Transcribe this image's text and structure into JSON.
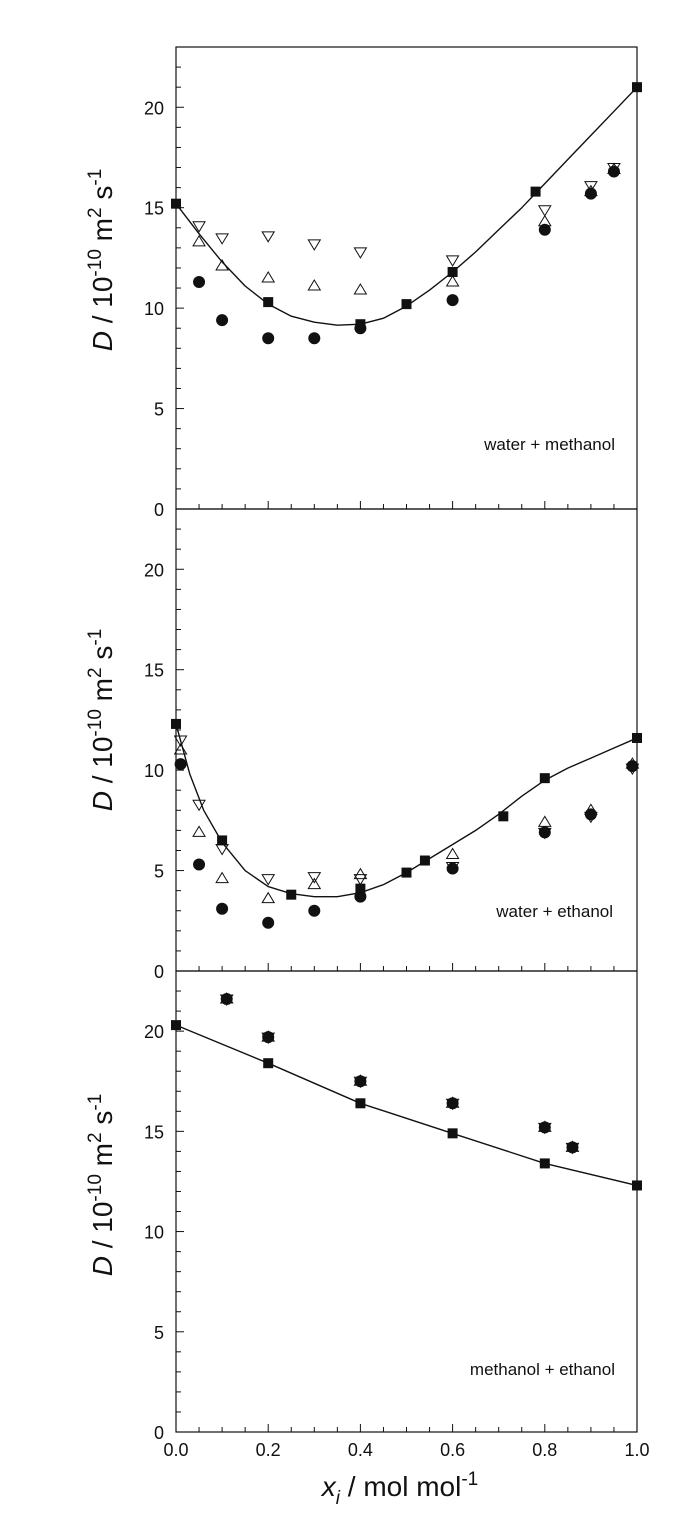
{
  "chart_data": [
    {
      "type": "scatter",
      "panel": "top",
      "annotation": "water + methanol",
      "ylabel_italic": "D",
      "ylabel_rest": " / 10",
      "ylabel_exp": "-10",
      "ylabel_unit": " m",
      "ylabel_unit_exp": "2",
      "ylabel_s": " s",
      "ylabel_s_exp": "-1",
      "xlim": [
        0,
        1
      ],
      "ylim": [
        0,
        23
      ],
      "yticks": [
        0,
        5,
        10,
        15,
        20
      ],
      "yticklabels": [
        "0",
        "5",
        "10",
        "15",
        "20"
      ],
      "grid": false,
      "series": [
        {
          "marker": "filled-square",
          "x": [
            0.0,
            0.2,
            0.4,
            0.5,
            0.6,
            0.78,
            1.0
          ],
          "y": [
            15.2,
            10.3,
            9.2,
            10.2,
            11.8,
            15.8,
            21.0
          ]
        },
        {
          "marker": "filled-circle",
          "x": [
            0.05,
            0.1,
            0.2,
            0.3,
            0.4,
            0.6,
            0.8,
            0.9,
            0.95
          ],
          "y": [
            11.3,
            9.4,
            8.5,
            8.5,
            9.0,
            10.4,
            13.9,
            15.7,
            16.8
          ]
        },
        {
          "marker": "open-triangle-up",
          "x": [
            0.05,
            0.1,
            0.2,
            0.3,
            0.4,
            0.6,
            0.8,
            0.9,
            0.95
          ],
          "y": [
            13.3,
            12.1,
            11.5,
            11.1,
            10.9,
            11.3,
            14.3,
            15.8,
            16.9
          ]
        },
        {
          "marker": "open-triangle-down",
          "x": [
            0.05,
            0.1,
            0.2,
            0.3,
            0.4,
            0.6,
            0.8,
            0.9,
            0.95
          ],
          "y": [
            14.1,
            13.5,
            13.6,
            13.2,
            12.8,
            12.4,
            14.9,
            16.1,
            17.0
          ]
        }
      ],
      "fit_curve": {
        "x": [
          0.0,
          0.05,
          0.1,
          0.15,
          0.2,
          0.25,
          0.3,
          0.35,
          0.4,
          0.45,
          0.5,
          0.55,
          0.6,
          0.65,
          0.7,
          0.75,
          0.8,
          0.85,
          0.9,
          0.95,
          1.0
        ],
        "y": [
          15.2,
          13.7,
          12.3,
          11.1,
          10.2,
          9.6,
          9.3,
          9.15,
          9.2,
          9.5,
          10.1,
          10.9,
          11.8,
          12.8,
          13.9,
          15.0,
          16.2,
          17.4,
          18.6,
          19.8,
          21.0
        ]
      }
    },
    {
      "type": "scatter",
      "panel": "middle",
      "annotation": "water + ethanol",
      "ylabel_italic": "D",
      "ylabel_rest": " / 10",
      "ylabel_exp": "-10",
      "ylabel_unit": " m",
      "ylabel_unit_exp": "2",
      "ylabel_s": " s",
      "ylabel_s_exp": "-1",
      "xlim": [
        0,
        1
      ],
      "ylim": [
        0,
        23
      ],
      "yticks": [
        0,
        5,
        10,
        15,
        20
      ],
      "yticklabels": [
        "0",
        "5",
        "10",
        "15",
        "20"
      ],
      "grid": false,
      "series": [
        {
          "marker": "filled-square",
          "x": [
            0.0,
            0.1,
            0.25,
            0.4,
            0.5,
            0.54,
            0.71,
            0.8,
            1.0
          ],
          "y": [
            12.3,
            6.5,
            3.8,
            4.1,
            4.9,
            5.5,
            7.7,
            9.6,
            11.6
          ]
        },
        {
          "marker": "filled-circle",
          "x": [
            0.01,
            0.05,
            0.1,
            0.2,
            0.3,
            0.4,
            0.6,
            0.8,
            0.9,
            0.99
          ],
          "y": [
            10.3,
            5.3,
            3.1,
            2.4,
            3.0,
            3.7,
            5.1,
            6.9,
            7.8,
            10.2
          ]
        },
        {
          "marker": "open-triangle-up",
          "x": [
            0.01,
            0.05,
            0.1,
            0.2,
            0.3,
            0.4,
            0.6,
            0.8,
            0.9,
            0.99
          ],
          "y": [
            11.0,
            6.9,
            4.6,
            3.6,
            4.3,
            4.8,
            5.8,
            7.4,
            8.0,
            10.3
          ]
        },
        {
          "marker": "open-triangle-down",
          "x": [
            0.01,
            0.05,
            0.1,
            0.2,
            0.3,
            0.4,
            0.6,
            0.8,
            0.9,
            0.99
          ],
          "y": [
            11.5,
            8.3,
            6.1,
            4.6,
            4.7,
            4.6,
            5.2,
            6.9,
            7.7,
            10.1
          ]
        }
      ],
      "fit_curve": {
        "x": [
          0.0,
          0.03,
          0.06,
          0.1,
          0.15,
          0.2,
          0.25,
          0.3,
          0.35,
          0.4,
          0.45,
          0.5,
          0.55,
          0.6,
          0.65,
          0.7,
          0.75,
          0.8,
          0.85,
          0.9,
          0.95,
          1.0
        ],
        "y": [
          12.3,
          9.8,
          8.0,
          6.4,
          5.0,
          4.2,
          3.85,
          3.7,
          3.7,
          3.9,
          4.3,
          4.9,
          5.6,
          6.3,
          7.0,
          7.8,
          8.7,
          9.5,
          10.1,
          10.6,
          11.1,
          11.6
        ]
      }
    },
    {
      "type": "scatter",
      "panel": "bottom",
      "annotation": "methanol + ethanol",
      "ylabel_italic": "D",
      "ylabel_rest": " / 10",
      "ylabel_exp": "-10",
      "ylabel_unit": " m",
      "ylabel_unit_exp": "2",
      "ylabel_s": " s",
      "ylabel_s_exp": "-1",
      "xlim": [
        0,
        1
      ],
      "ylim": [
        0,
        23
      ],
      "yticks": [
        0,
        5,
        10,
        15,
        20
      ],
      "yticklabels": [
        "0",
        "5",
        "10",
        "15",
        "20"
      ],
      "xticks": [
        0.0,
        0.2,
        0.4,
        0.6,
        0.8,
        1.0
      ],
      "xticklabels": [
        "0.0",
        "0.2",
        "0.4",
        "0.6",
        "0.8",
        "1.0"
      ],
      "xlabel_italic": "x",
      "xlabel_sub": "i",
      "xlabel_rest": " / mol mol",
      "xlabel_exp": "-1",
      "grid": false,
      "series": [
        {
          "marker": "filled-square",
          "x": [
            0.0,
            0.2,
            0.4,
            0.6,
            0.8,
            1.0
          ],
          "y": [
            20.3,
            18.4,
            16.4,
            14.9,
            13.4,
            12.3
          ]
        },
        {
          "marker": "filled-circle",
          "x": [
            0.11,
            0.2,
            0.4,
            0.6,
            0.8,
            0.86
          ],
          "y": [
            21.6,
            19.7,
            17.5,
            16.4,
            15.2,
            14.2
          ]
        },
        {
          "marker": "open-triangle-up",
          "x": [
            0.11,
            0.2,
            0.4,
            0.6,
            0.8,
            0.86
          ],
          "y": [
            21.6,
            19.7,
            17.5,
            16.4,
            15.2,
            14.2
          ]
        },
        {
          "marker": "open-triangle-down",
          "x": [
            0.11,
            0.2,
            0.4,
            0.6,
            0.8,
            0.86
          ],
          "y": [
            21.6,
            19.7,
            17.5,
            16.4,
            15.2,
            14.2
          ]
        }
      ],
      "fit_curve": {
        "x": [
          0.0,
          0.2,
          0.4,
          0.6,
          0.8,
          1.0
        ],
        "y": [
          20.3,
          18.4,
          16.4,
          14.9,
          13.4,
          12.3
        ]
      }
    }
  ]
}
